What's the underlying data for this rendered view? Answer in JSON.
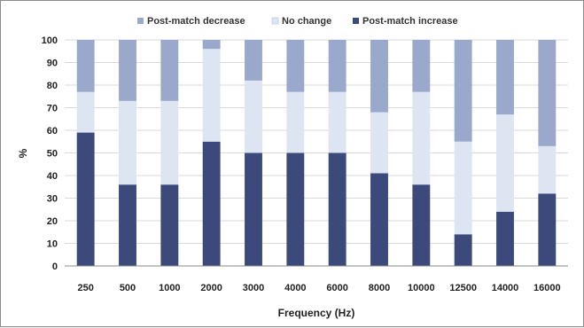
{
  "chart_data": {
    "type": "bar",
    "stacked": true,
    "percent_stacked": true,
    "categories": [
      "250",
      "500",
      "1000",
      "2000",
      "3000",
      "4000",
      "6000",
      "8000",
      "10000",
      "12500",
      "14000",
      "16000"
    ],
    "series": [
      {
        "name": "Post-match increase",
        "color": "#3b4a7a",
        "values": [
          59,
          36,
          36,
          55,
          50,
          50,
          50,
          41,
          36,
          14,
          24,
          32
        ]
      },
      {
        "name": "No change",
        "color": "#dde4f2",
        "values": [
          18,
          37,
          37,
          41,
          32,
          27,
          27,
          27,
          41,
          41,
          43,
          21
        ]
      },
      {
        "name": "Post-match decrease",
        "color": "#9aa9cb",
        "values": [
          23,
          27,
          27,
          4,
          18,
          23,
          23,
          32,
          23,
          45,
          33,
          47
        ]
      }
    ],
    "legend_order": [
      "Post-match decrease",
      "No change",
      "Post-match increase"
    ],
    "legend_position": "top",
    "xlabel": "Frequency (Hz)",
    "ylabel": "%",
    "ylim": [
      0,
      100
    ],
    "yticks": [
      0,
      10,
      20,
      30,
      40,
      50,
      60,
      70,
      80,
      90,
      100
    ],
    "grid": true,
    "grid_color": "#d9d9d9"
  }
}
